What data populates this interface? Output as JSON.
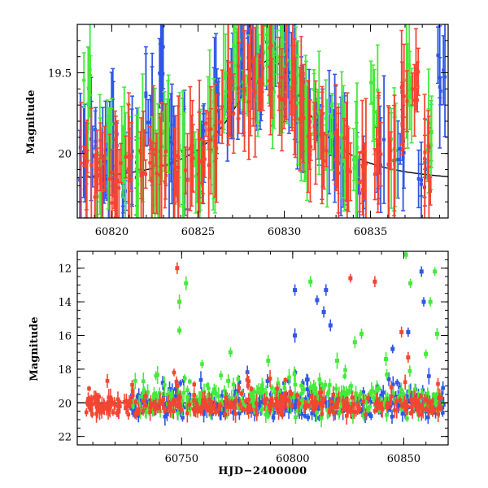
{
  "chart_data": [
    {
      "type": "scatter",
      "panel": "top",
      "ylabel": "Magnitude",
      "xlabel": "",
      "xlim": [
        60818,
        60839.5
      ],
      "ylim": [
        20.4,
        19.2
      ],
      "y_inverted": true,
      "x_ticks": [
        60820,
        60825,
        60830,
        60835
      ],
      "x_tick_labels": [
        "60820",
        "60825",
        "60830",
        "60835"
      ],
      "y_ticks": [
        19.5,
        20
      ],
      "y_tick_labels": [
        "19.5",
        "20"
      ],
      "model_curve": {
        "peak_x": 60829.2,
        "peak_y": 19.42,
        "base_y": 20.19,
        "half_width": 2.6
      },
      "series": [
        {
          "color": "#2f56e8",
          "points": [
            [
              60818.3,
              20.05
            ],
            [
              60818.9,
              19.95
            ],
            [
              60819.6,
              20.1
            ],
            [
              60820.1,
              19.9
            ],
            [
              60820.6,
              20.2
            ],
            [
              60821.3,
              20.0
            ],
            [
              60822.2,
              19.7
            ],
            [
              60822.9,
              19.45
            ],
            [
              60823.5,
              20.05
            ],
            [
              60824.3,
              20.1
            ],
            [
              60825.2,
              20.0
            ],
            [
              60826.0,
              19.7
            ],
            [
              60826.8,
              19.6
            ],
            [
              60827.4,
              19.5
            ],
            [
              60828.0,
              19.3
            ],
            [
              60828.6,
              19.55
            ],
            [
              60829.1,
              19.4
            ],
            [
              60829.7,
              19.3
            ],
            [
              60830.2,
              19.5
            ],
            [
              60830.8,
              19.7
            ],
            [
              60831.4,
              19.75
            ],
            [
              60832.1,
              19.9
            ],
            [
              60832.8,
              19.95
            ],
            [
              60833.5,
              20.0
            ],
            [
              60834.4,
              20.15
            ],
            [
              60835.6,
              20.0
            ],
            [
              60836.8,
              19.9
            ],
            [
              60838.0,
              20.2
            ],
            [
              60839.1,
              19.5
            ]
          ]
        },
        {
          "color": "#44ea3a",
          "points": [
            [
              60818.6,
              19.6
            ],
            [
              60819.2,
              20.15
            ],
            [
              60819.9,
              19.9
            ],
            [
              60820.8,
              20.0
            ],
            [
              60821.6,
              20.05
            ],
            [
              60822.5,
              20.1
            ],
            [
              60823.1,
              19.95
            ],
            [
              60824.0,
              20.0
            ],
            [
              60825.0,
              20.1
            ],
            [
              60825.8,
              19.9
            ],
            [
              60826.6,
              19.65
            ],
            [
              60827.2,
              19.4
            ],
            [
              60827.8,
              19.55
            ],
            [
              60828.4,
              19.45
            ],
            [
              60829.0,
              19.35
            ],
            [
              60829.5,
              19.5
            ],
            [
              60830.0,
              19.45
            ],
            [
              60830.6,
              19.6
            ],
            [
              60831.2,
              19.8
            ],
            [
              60831.9,
              19.7
            ],
            [
              60832.6,
              19.85
            ],
            [
              60833.3,
              19.95
            ],
            [
              60834.1,
              20.05
            ],
            [
              60835.2,
              19.7
            ],
            [
              60836.4,
              20.0
            ],
            [
              60837.2,
              19.6
            ],
            [
              60838.5,
              19.85
            ]
          ]
        },
        {
          "color": "#f44532",
          "points": [
            [
              60818.4,
              20.1
            ],
            [
              60819.0,
              20.15
            ],
            [
              60819.4,
              20.05
            ],
            [
              60820.0,
              20.2
            ],
            [
              60820.4,
              20.1
            ],
            [
              60821.0,
              20.05
            ],
            [
              60821.8,
              20.0
            ],
            [
              60822.4,
              20.05
            ],
            [
              60823.0,
              20.1
            ],
            [
              60823.8,
              20.15
            ],
            [
              60824.5,
              20.1
            ],
            [
              60825.1,
              20.05
            ],
            [
              60825.6,
              19.95
            ],
            [
              60826.2,
              19.85
            ],
            [
              60826.9,
              19.7
            ],
            [
              60827.5,
              19.6
            ],
            [
              60828.1,
              19.55
            ],
            [
              60828.7,
              19.5
            ],
            [
              60829.3,
              19.45
            ],
            [
              60829.9,
              19.55
            ],
            [
              60830.5,
              19.6
            ],
            [
              60831.0,
              19.7
            ],
            [
              60831.6,
              19.85
            ],
            [
              60832.3,
              19.9
            ],
            [
              60833.0,
              20.0
            ],
            [
              60833.7,
              20.05
            ],
            [
              60834.6,
              20.1
            ],
            [
              60835.4,
              20.05
            ],
            [
              60836.2,
              20.1
            ],
            [
              60837.0,
              19.7
            ],
            [
              60837.6,
              19.55
            ],
            [
              60838.3,
              20.1
            ]
          ]
        }
      ]
    },
    {
      "type": "scatter",
      "panel": "bottom",
      "ylabel": "Magnitude",
      "xlabel": "HJD−2400000",
      "xlim": [
        60703,
        60870
      ],
      "ylim": [
        22.5,
        11
      ],
      "y_inverted": true,
      "x_ticks": [
        60750,
        60800,
        60850
      ],
      "x_tick_labels": [
        "60750",
        "60800",
        "60850"
      ],
      "y_ticks": [
        12,
        14,
        16,
        18,
        20,
        22
      ],
      "y_tick_labels": [
        "12",
        "14",
        "16",
        "18",
        "20",
        "22"
      ],
      "baseline_y": 20.0,
      "outliers": [
        {
          "color": "#f44532",
          "points": [
            [
              60748,
              12.0
            ],
            [
              60826,
              12.6
            ],
            [
              60837,
              12.8
            ],
            [
              60849,
              15.8
            ],
            [
              60852,
              17.3
            ],
            [
              60748,
              19.0
            ]
          ]
        },
        {
          "color": "#44ea3a",
          "points": [
            [
              60752,
              12.9
            ],
            [
              60749,
              14.0
            ],
            [
              60749,
              15.7
            ],
            [
              60771,
              18.7
            ],
            [
              60772,
              17.0
            ],
            [
              60789,
              17.5
            ],
            [
              60808,
              12.8
            ],
            [
              60820,
              17.5
            ],
            [
              60828,
              16.4
            ],
            [
              60831,
              15.9
            ],
            [
              60842,
              17.4
            ],
            [
              60851,
              11.2
            ],
            [
              60864,
              12.2
            ],
            [
              60862,
              14.0
            ],
            [
              60860,
              17.1
            ],
            [
              60865,
              15.9
            ],
            [
              60853,
              12.9
            ]
          ]
        },
        {
          "color": "#2f56e8",
          "points": [
            [
              60801,
              13.3
            ],
            [
              60801,
              16.0
            ],
            [
              60811,
              13.9
            ],
            [
              60815,
              13.3
            ],
            [
              60814,
              14.6
            ],
            [
              60852,
              15.8
            ],
            [
              60858,
              12.2
            ],
            [
              60817,
              15.4
            ],
            [
              60845,
              16.8
            ],
            [
              60859,
              14.0
            ]
          ]
        }
      ],
      "series_ranges": [
        {
          "color": "#2f56e8",
          "x_start": 60727,
          "x_end": 60868,
          "y_center": 20.1,
          "y_spread": 0.9
        },
        {
          "color": "#44ea3a",
          "x_start": 60727,
          "x_end": 60868,
          "y_center": 19.9,
          "y_spread": 1.1
        },
        {
          "color": "#f44532",
          "x_start": 60707,
          "x_end": 60868,
          "y_center": 20.15,
          "y_spread": 0.7
        }
      ]
    }
  ]
}
